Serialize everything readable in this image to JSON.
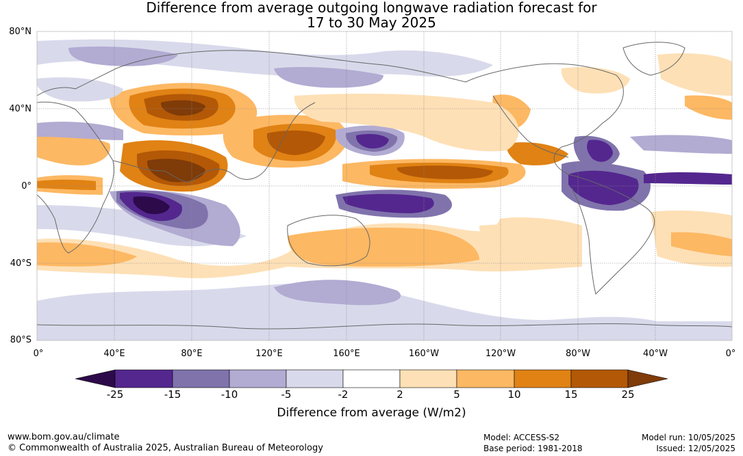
{
  "title": {
    "line1": "Difference from average outgoing longwave radiation forecast for",
    "line2": "17 to 30 May 2025"
  },
  "map": {
    "lat_labels": [
      "80°N",
      "40°N",
      "0°",
      "40°S",
      "80°S"
    ],
    "lon_labels": [
      "0°",
      "40°E",
      "80°E",
      "120°E",
      "160°E",
      "160°W",
      "120°W",
      "80°W",
      "40°W",
      "0°"
    ]
  },
  "colorbar": {
    "ticks": [
      "-25",
      "-15",
      "-10",
      "-5",
      "-2",
      "2",
      "5",
      "10",
      "15",
      "25"
    ],
    "label": "Difference from average (W/m2)",
    "colors": [
      "#2d0a4a",
      "#54278f",
      "#8073ac",
      "#b2abd2",
      "#d8daeb",
      "#ffffff",
      "#fee0b6",
      "#fdb863",
      "#e08214",
      "#b35806",
      "#7f3b08"
    ]
  },
  "footer": {
    "url": "www.bom.gov.au/climate",
    "copyright": "© Commonwealth of Australia 2025, Australian Bureau of Meteorology",
    "model": "Model: ACCESS-S2",
    "base_period": "Base period: 1981-2018",
    "model_run": "Model run: 10/05/2025",
    "issued": "Issued: 12/05/2025"
  }
}
